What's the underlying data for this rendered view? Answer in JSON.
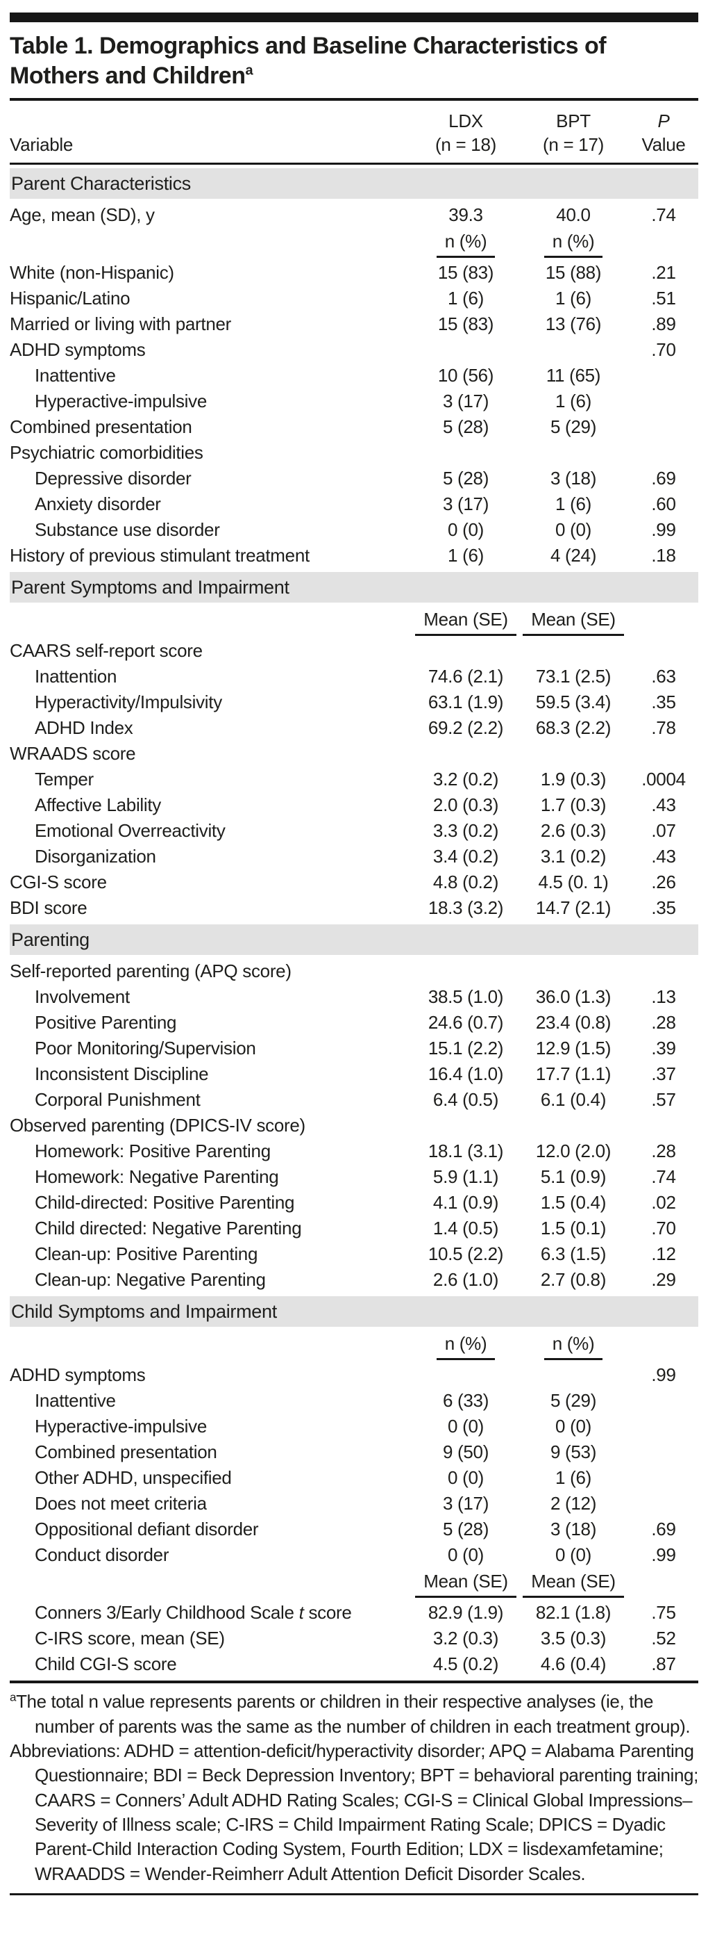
{
  "title": {
    "line1": "Table 1. Demographics and Baseline Characteristics of",
    "line2": "Mothers and Children",
    "superscript": "a"
  },
  "header": {
    "variable": "Variable",
    "ldx_line1": "LDX",
    "ldx_line2": "(n = 18)",
    "bpt_line1": "BPT",
    "bpt_line2": "(n = 17)",
    "p_line1": "P",
    "p_line2": "Value"
  },
  "table": {
    "rows": [
      {
        "type": "section",
        "label": "Parent Characteristics"
      },
      {
        "type": "data",
        "label": "Age, mean (SD), y",
        "ldx": "39.3",
        "bpt": "40.0",
        "p": ".74"
      },
      {
        "type": "subheader",
        "ldx": "n (%)",
        "bpt": "n (%)",
        "p": ""
      },
      {
        "type": "data",
        "label": "White (non-Hispanic)",
        "ldx": "15 (83)",
        "bpt": "15 (88)",
        "p": ".21"
      },
      {
        "type": "data",
        "label": "Hispanic/Latino",
        "ldx": "1 (6)",
        "bpt": "1 (6)",
        "p": ".51"
      },
      {
        "type": "data",
        "label": "Married or living with partner",
        "ldx": "15 (83)",
        "bpt": "13 (76)",
        "p": ".89"
      },
      {
        "type": "data",
        "label": "ADHD symptoms",
        "ldx": "",
        "bpt": "",
        "p": ".70"
      },
      {
        "type": "data",
        "label": "Inattentive",
        "indent": 1,
        "ldx": "10 (56)",
        "bpt": "11 (65)",
        "p": ""
      },
      {
        "type": "data",
        "label": "Hyperactive-impulsive",
        "indent": 1,
        "ldx": "3 (17)",
        "bpt": "1 (6)",
        "p": ""
      },
      {
        "type": "data",
        "label": "Combined presentation",
        "ldx": "5 (28)",
        "bpt": "5 (29)",
        "p": ""
      },
      {
        "type": "data",
        "label": "Psychiatric comorbidities",
        "ldx": "",
        "bpt": "",
        "p": ""
      },
      {
        "type": "data",
        "label": "Depressive disorder",
        "indent": 1,
        "ldx": "5 (28)",
        "bpt": "3 (18)",
        "p": ".69"
      },
      {
        "type": "data",
        "label": "Anxiety disorder",
        "indent": 1,
        "ldx": "3 (17)",
        "bpt": "1 (6)",
        "p": ".60"
      },
      {
        "type": "data",
        "label": "Substance use disorder",
        "indent": 1,
        "ldx": "0 (0)",
        "bpt": "0 (0)",
        "p": ".99"
      },
      {
        "type": "data",
        "label": "History of previous stimulant treatment",
        "ldx": "1 (6)",
        "bpt": "4 (24)",
        "p": ".18"
      },
      {
        "type": "section",
        "label": "Parent Symptoms and Impairment"
      },
      {
        "type": "subheader",
        "ldx": "Mean (SE)",
        "bpt": "Mean (SE)",
        "p": ""
      },
      {
        "type": "data",
        "label": "CAARS self-report score",
        "ldx": "",
        "bpt": "",
        "p": ""
      },
      {
        "type": "data",
        "label": "Inattention",
        "indent": 1,
        "ldx": "74.6 (2.1)",
        "bpt": "73.1 (2.5)",
        "p": ".63"
      },
      {
        "type": "data",
        "label": "Hyperactivity/Impulsivity",
        "indent": 1,
        "ldx": "63.1 (1.9)",
        "bpt": "59.5 (3.4)",
        "p": ".35"
      },
      {
        "type": "data",
        "label": "ADHD Index",
        "indent": 1,
        "ldx": "69.2 (2.2)",
        "bpt": "68.3 (2.2)",
        "p": ".78"
      },
      {
        "type": "data",
        "label": "WRAADS score",
        "ldx": "",
        "bpt": "",
        "p": ""
      },
      {
        "type": "data",
        "label": "Temper",
        "indent": 1,
        "ldx": "3.2 (0.2)",
        "bpt": "1.9 (0.3)",
        "p": ".0004"
      },
      {
        "type": "data",
        "label": "Affective Lability",
        "indent": 1,
        "ldx": "2.0 (0.3)",
        "bpt": "1.7 (0.3)",
        "p": ".43"
      },
      {
        "type": "data",
        "label": "Emotional Overreactivity",
        "indent": 1,
        "ldx": "3.3 (0.2)",
        "bpt": "2.6 (0.3)",
        "p": ".07"
      },
      {
        "type": "data",
        "label": "Disorganization",
        "indent": 1,
        "ldx": "3.4 (0.2)",
        "bpt": "3.1 (0.2)",
        "p": ".43"
      },
      {
        "type": "data",
        "label": "CGI-S score",
        "ldx": "4.8 (0.2)",
        "bpt": "4.5 (0. 1)",
        "p": ".26"
      },
      {
        "type": "data",
        "label": "BDI score",
        "ldx": "18.3 (3.2)",
        "bpt": "14.7 (2.1)",
        "p": ".35"
      },
      {
        "type": "section",
        "label": "Parenting"
      },
      {
        "type": "data",
        "label": "Self-reported parenting (APQ score)",
        "ldx": "",
        "bpt": "",
        "p": ""
      },
      {
        "type": "data",
        "label": "Involvement",
        "indent": 1,
        "ldx": "38.5 (1.0)",
        "bpt": "36.0 (1.3)",
        "p": ".13"
      },
      {
        "type": "data",
        "label": "Positive Parenting",
        "indent": 1,
        "ldx": "24.6 (0.7)",
        "bpt": "23.4 (0.8)",
        "p": ".28"
      },
      {
        "type": "data",
        "label": "Poor Monitoring/Supervision",
        "indent": 1,
        "ldx": "15.1 (2.2)",
        "bpt": "12.9 (1.5)",
        "p": ".39"
      },
      {
        "type": "data",
        "label": "Inconsistent Discipline",
        "indent": 1,
        "ldx": "16.4 (1.0)",
        "bpt": "17.7 (1.1)",
        "p": ".37"
      },
      {
        "type": "data",
        "label": "Corporal Punishment",
        "indent": 1,
        "ldx": "6.4 (0.5)",
        "bpt": "6.1 (0.4)",
        "p": ".57"
      },
      {
        "type": "data",
        "label": "Observed parenting (DPICS-IV score)",
        "ldx": "",
        "bpt": "",
        "p": ""
      },
      {
        "type": "data",
        "label": "Homework: Positive Parenting",
        "indent": 1,
        "ldx": "18.1 (3.1)",
        "bpt": "12.0 (2.0)",
        "p": ".28"
      },
      {
        "type": "data",
        "label": "Homework: Negative Parenting",
        "indent": 1,
        "ldx": "5.9 (1.1)",
        "bpt": "5.1 (0.9)",
        "p": ".74"
      },
      {
        "type": "data",
        "label": "Child-directed: Positive Parenting",
        "indent": 1,
        "ldx": "4.1 (0.9)",
        "bpt": "1.5 (0.4)",
        "p": ".02"
      },
      {
        "type": "data",
        "label": "Child directed: Negative Parenting",
        "indent": 1,
        "ldx": "1.4 (0.5)",
        "bpt": "1.5 (0.1)",
        "p": ".70"
      },
      {
        "type": "data",
        "label": "Clean-up: Positive Parenting",
        "indent": 1,
        "ldx": "10.5 (2.2)",
        "bpt": "6.3 (1.5)",
        "p": ".12"
      },
      {
        "type": "data",
        "label": "Clean-up: Negative Parenting",
        "indent": 1,
        "ldx": "2.6 (1.0)",
        "bpt": "2.7 (0.8)",
        "p": ".29"
      },
      {
        "type": "section",
        "label": "Child Symptoms and Impairment"
      },
      {
        "type": "subheader",
        "ldx": "n (%)",
        "bpt": "n (%)",
        "p": ""
      },
      {
        "type": "data",
        "label": "ADHD symptoms",
        "ldx": "",
        "bpt": "",
        "p": ".99"
      },
      {
        "type": "data",
        "label": "Inattentive",
        "indent": 1,
        "ldx": "6 (33)",
        "bpt": "5 (29)",
        "p": ""
      },
      {
        "type": "data",
        "label": "Hyperactive-impulsive",
        "indent": 1,
        "ldx": "0 (0)",
        "bpt": "0 (0)",
        "p": ""
      },
      {
        "type": "data",
        "label": "Combined presentation",
        "indent": 1,
        "ldx": "9 (50)",
        "bpt": "9 (53)",
        "p": ""
      },
      {
        "type": "data",
        "label": "Other ADHD, unspecified",
        "indent": 1,
        "ldx": "0 (0)",
        "bpt": "1 (6)",
        "p": ""
      },
      {
        "type": "data",
        "label": "Does not meet criteria",
        "indent": 1,
        "ldx": "3 (17)",
        "bpt": "2 (12)",
        "p": ""
      },
      {
        "type": "data",
        "label": "Oppositional defiant disorder",
        "indent": 1,
        "ldx": "5 (28)",
        "bpt": "3 (18)",
        "p": ".69"
      },
      {
        "type": "data",
        "label": "Conduct disorder",
        "indent": 1,
        "ldx": "0 (0)",
        "bpt": "0 (0)",
        "p": ".99"
      },
      {
        "type": "subheader",
        "ldx": "Mean (SE)",
        "bpt": "Mean (SE)",
        "p": ""
      },
      {
        "type": "data",
        "indent": 1,
        "label_runs": [
          {
            "t": "Conners 3/Early Childhood Scale "
          },
          {
            "t": "t",
            "italic": true
          },
          {
            "t": " score"
          }
        ],
        "ldx": "82.9 (1.9)",
        "bpt": "82.1 (1.8)",
        "p": ".75"
      },
      {
        "type": "data",
        "label": "C-IRS score, mean (SE)",
        "indent": 1,
        "ldx": "3.2 (0.3)",
        "bpt": "3.5 (0.3)",
        "p": ".52"
      },
      {
        "type": "data",
        "label": "Child CGI-S score",
        "indent": 1,
        "ldx": "4.5 (0.2)",
        "bpt": "4.6 (0.4)",
        "p": ".87"
      }
    ]
  },
  "footnotes": {
    "a_marker": "a",
    "a_text": "The total n value represents parents or children in their respective analyses (ie, the number of parents was the same as the number of children in each treatment group).",
    "abbreviations": "Abbreviations: ADHD = attention-deficit/hyperactivity disorder; APQ = Alabama Parenting Questionnaire; BDI = Beck Depression Inventory; BPT = behavioral parenting training; CAARS = Conners’ Adult ADHD Rating Scales; CGI-S = Clinical Global Impressions–Severity of Illness scale; C-IRS = Child Impairment Rating Scale; DPICS = Dyadic Parent-Child Interaction Coding System, Fourth Edition; LDX = lisdexamfetamine; WRAADDS = Wender-Reimherr Adult Attention Deficit Disorder Scales."
  },
  "colors": {
    "section_band": "#e2e2e2",
    "text": "#1e1e1c",
    "rule": "#171717"
  }
}
